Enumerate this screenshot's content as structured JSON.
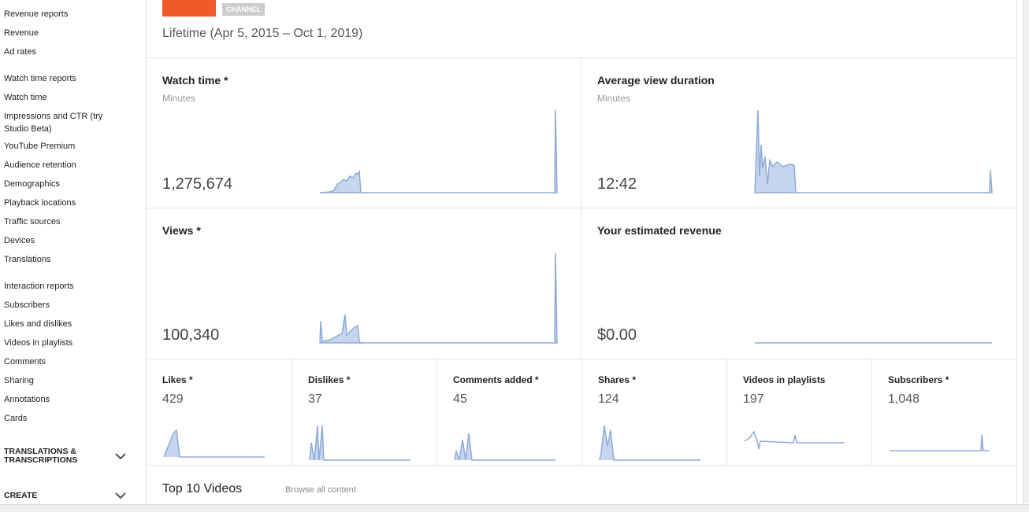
{
  "sidebar": {
    "groups": [
      {
        "heading": "Revenue reports",
        "items": [
          "Revenue",
          "Ad rates"
        ]
      },
      {
        "heading": "Watch time reports",
        "items": [
          "Watch time",
          "Impressions and CTR (try Studio Beta)",
          "YouTube Premium",
          "Audience retention",
          "Demographics",
          "Playback locations",
          "Traffic sources",
          "Devices",
          "Translations"
        ]
      },
      {
        "heading": "Interaction reports",
        "items": [
          "Subscribers",
          "Likes and dislikes",
          "Videos in playlists",
          "Comments",
          "Sharing",
          "Annotations",
          "Cards"
        ]
      }
    ],
    "collapsibles": [
      "TRANSLATIONS & TRANSCRIPTIONS",
      "CREATE"
    ]
  },
  "header": {
    "badge": "CHANNEL",
    "period": "Lifetime (Apr 5, 2015 – Oct 1, 2019)"
  },
  "big_cards": [
    {
      "title": "Watch time *",
      "unit": "Minutes",
      "value": "1,275,674"
    },
    {
      "title": "Average view duration",
      "unit": "Minutes",
      "value": "12:42"
    },
    {
      "title": "Views *",
      "value": "100,340"
    },
    {
      "title": "Your estimated revenue",
      "value": "$0.00"
    }
  ],
  "small_cards": [
    {
      "title": "Likes *",
      "value": "429"
    },
    {
      "title": "Dislikes *",
      "value": "37"
    },
    {
      "title": "Comments added *",
      "value": "45"
    },
    {
      "title": "Shares *",
      "value": "124"
    },
    {
      "title": "Videos in playlists",
      "value": "197"
    },
    {
      "title": "Subscribers *",
      "value": "1,048"
    }
  ],
  "footer": {
    "title": "Top 10 Videos",
    "link": "Browse all content"
  }
}
